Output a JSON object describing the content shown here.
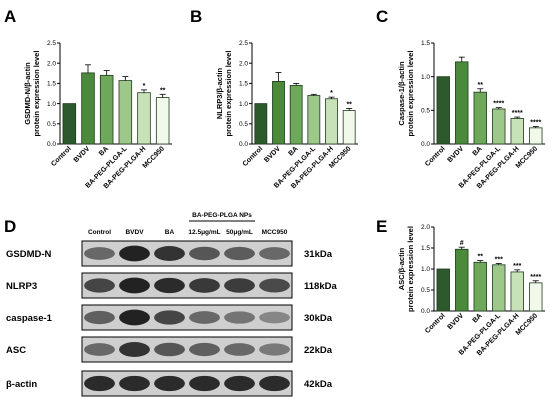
{
  "colors": {
    "control": "#2c5a2c",
    "bvdv": "#4a8a3a",
    "ba": "#6ea85a",
    "ba_l": "#9dc88a",
    "ba_h": "#c8e2b8",
    "mcc950": "#f2f8ea",
    "edge": "#1f3a1f"
  },
  "blot": {
    "panel_letter": "D",
    "group_label": "BA-PEG-PLGA NPs",
    "columns": [
      "Control",
      "BVDV",
      "BA",
      "12.5μg/mL",
      "50μg/mL",
      "MCC950"
    ],
    "rows": [
      {
        "label": "GSDMD-N",
        "kda": "31kDa",
        "intensities": [
          0.55,
          0.95,
          0.85,
          0.65,
          0.62,
          0.55
        ]
      },
      {
        "label": "NLRP3",
        "kda": "118kDa",
        "intensities": [
          0.75,
          0.95,
          0.9,
          0.82,
          0.8,
          0.72
        ]
      },
      {
        "label": "caspase-1",
        "kda": "30kDa",
        "intensities": [
          0.6,
          0.95,
          0.75,
          0.55,
          0.48,
          0.38
        ]
      },
      {
        "label": "ASC",
        "kda": "22kDa",
        "intensities": [
          0.55,
          0.85,
          0.65,
          0.6,
          0.55,
          0.45
        ]
      },
      {
        "label": "β-actin",
        "kda": "42kDa",
        "intensities": [
          0.9,
          0.9,
          0.9,
          0.9,
          0.9,
          0.9
        ]
      }
    ]
  },
  "chart_data": [
    {
      "panel": "A",
      "type": "bar",
      "categories": [
        "Control",
        "BVDV",
        "BA",
        "BA-PEG-PLGA-L",
        "BA-PEG-PLGA-H",
        "MCC950"
      ],
      "values": [
        1.0,
        1.76,
        1.7,
        1.57,
        1.27,
        1.15
      ],
      "errors": [
        0.0,
        0.2,
        0.12,
        0.1,
        0.07,
        0.08
      ],
      "significance": [
        "",
        "",
        "",
        "",
        "*",
        "**"
      ],
      "ylabel": "GSDMD-N/β-actin\nprotein expression level",
      "ylim": [
        0,
        2.5
      ],
      "yticks": [
        0.0,
        0.5,
        1.0,
        1.5,
        2.0,
        2.5
      ]
    },
    {
      "panel": "B",
      "type": "bar",
      "categories": [
        "Control",
        "BVDV",
        "BA",
        "BA-PEG-PLGA-L",
        "BA-PEG-PLGA-H",
        "MCC950"
      ],
      "values": [
        1.0,
        1.55,
        1.45,
        1.2,
        1.12,
        0.83
      ],
      "errors": [
        0.0,
        0.22,
        0.05,
        0.03,
        0.04,
        0.05
      ],
      "significance": [
        "",
        "",
        "",
        "",
        "*",
        "**"
      ],
      "ylabel": "NLRP3/β-actin\nprotein expression level",
      "ylim": [
        0,
        2.5
      ],
      "yticks": [
        0.0,
        0.5,
        1.0,
        1.5,
        2.0,
        2.5
      ]
    },
    {
      "panel": "C",
      "type": "bar",
      "categories": [
        "Control",
        "BVDV",
        "BA",
        "BA-PEG-PLGA-L",
        "BA-PEG-PLGA-H",
        "MCC950"
      ],
      "values": [
        1.0,
        1.22,
        0.77,
        0.52,
        0.38,
        0.24
      ],
      "errors": [
        0.0,
        0.07,
        0.05,
        0.02,
        0.02,
        0.02
      ],
      "significance": [
        "",
        "",
        "**",
        "****",
        "****",
        "****"
      ],
      "ylabel": "Caspase-1/β-actin\nprotein expression level",
      "ylim": [
        0,
        1.5
      ],
      "yticks": [
        0.0,
        0.5,
        1.0,
        1.5
      ]
    },
    {
      "panel": "E",
      "type": "bar",
      "categories": [
        "Control",
        "BVDV",
        "BA",
        "BA-PEG-PLGA-L",
        "BA-PEG-PLGA-H",
        "MCC950"
      ],
      "values": [
        1.0,
        1.47,
        1.16,
        1.1,
        0.93,
        0.67
      ],
      "errors": [
        0.0,
        0.05,
        0.04,
        0.03,
        0.05,
        0.05
      ],
      "significance": [
        "",
        "#",
        "**",
        "***",
        "***",
        "****"
      ],
      "ylabel": "ASC/β-actin\nprotein expression level",
      "ylim": [
        0,
        2.0
      ],
      "yticks": [
        0.0,
        0.5,
        1.0,
        1.5,
        2.0
      ]
    }
  ]
}
